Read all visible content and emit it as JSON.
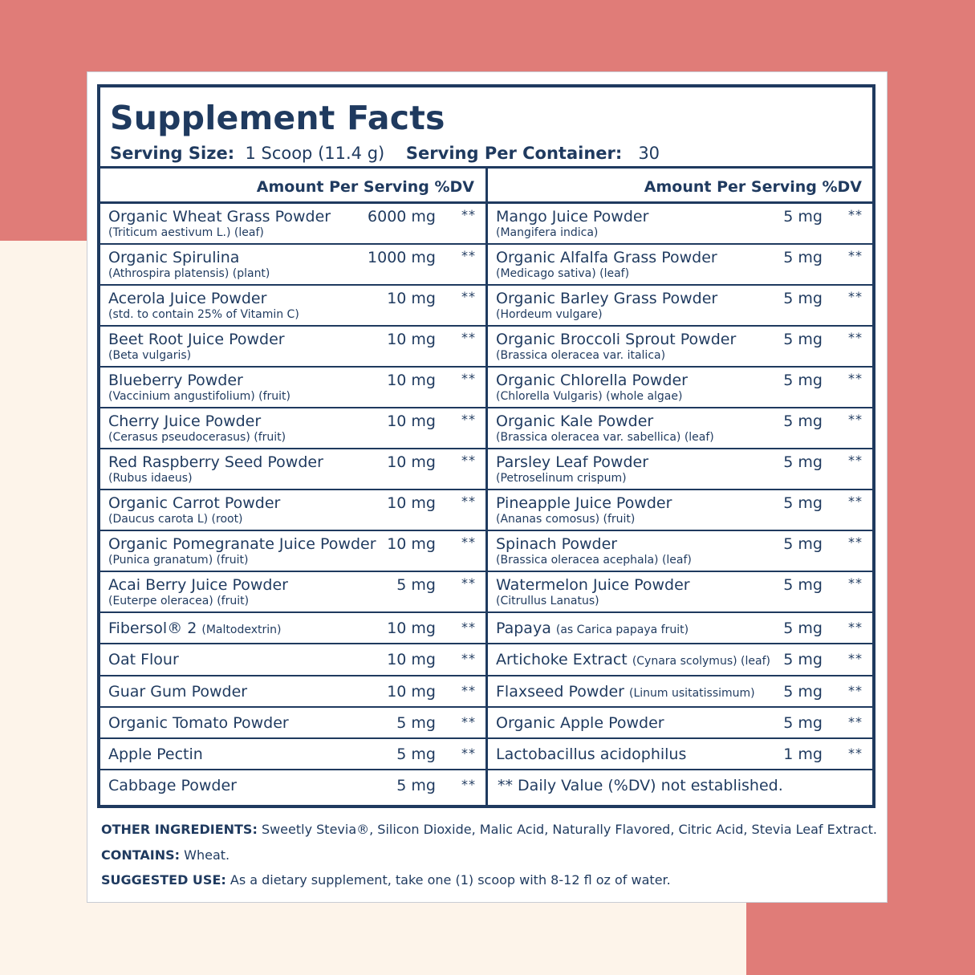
{
  "title": "Supplement Facts",
  "serving": {
    "size_label": "Serving Size:",
    "size_value": "1 Scoop (11.4 g)",
    "per_container_label": "Serving Per Container:",
    "per_container_value": "30"
  },
  "column_header": "Amount Per Serving %DV",
  "left_rows": [
    {
      "name": "Organic Wheat Grass Powder",
      "sci": "(Triticum aestivum L.) (leaf)",
      "amount": "6000 mg",
      "dv": "**"
    },
    {
      "name": "Organic Spirulina",
      "sci": "(Athrospira platensis) (plant)",
      "amount": "1000 mg",
      "dv": "**"
    },
    {
      "name": "Acerola Juice Powder",
      "sci": "(std. to contain 25% of Vitamin C)",
      "amount": "10 mg",
      "dv": "**"
    },
    {
      "name": "Beet Root Juice Powder",
      "sci": "(Beta vulgaris)",
      "amount": "10 mg",
      "dv": "**"
    },
    {
      "name": "Blueberry Powder",
      "sci": "(Vaccinium angustifolium) (fruit)",
      "amount": "10 mg",
      "dv": "**"
    },
    {
      "name": "Cherry Juice Powder",
      "sci": "(Cerasus pseudocerasus) (fruit)",
      "amount": "10 mg",
      "dv": "**"
    },
    {
      "name": "Red Raspberry Seed Powder",
      "sci": "(Rubus idaeus)",
      "amount": "10 mg",
      "dv": "**"
    },
    {
      "name": "Organic Carrot Powder",
      "sci": "(Daucus carota L) (root)",
      "amount": "10 mg",
      "dv": "**"
    },
    {
      "name": "Organic Pomegranate Juice Powder",
      "sci": "(Punica granatum) (fruit)",
      "amount": "10 mg",
      "dv": "**"
    },
    {
      "name": "Acai Berry Juice Powder",
      "sci": "(Euterpe oleracea) (fruit)",
      "amount": "5 mg",
      "dv": "**"
    },
    {
      "name": "Fibersol® 2",
      "paren": "(Maltodextrin)",
      "amount": "10 mg",
      "dv": "**"
    },
    {
      "name": "Oat Flour",
      "paren": "",
      "amount": "10 mg",
      "dv": "**"
    },
    {
      "name": "Guar Gum Powder",
      "paren": "",
      "amount": "10 mg",
      "dv": "**"
    },
    {
      "name": "Organic Tomato Powder",
      "paren": "",
      "amount": "5 mg",
      "dv": "**"
    },
    {
      "name": "Apple Pectin",
      "paren": "",
      "amount": "5 mg",
      "dv": "**"
    },
    {
      "name": "Cabbage Powder",
      "paren": "",
      "amount": "5 mg",
      "dv": "**"
    }
  ],
  "right_rows": [
    {
      "name": "Mango Juice Powder",
      "sci": "(Mangifera indica)",
      "amount": "5 mg",
      "dv": "**"
    },
    {
      "name": "Organic Alfalfa Grass Powder",
      "sci": "(Medicago sativa) (leaf)",
      "amount": "5 mg",
      "dv": "**"
    },
    {
      "name": "Organic Barley Grass Powder",
      "sci": "(Hordeum vulgare)",
      "amount": "5 mg",
      "dv": "**"
    },
    {
      "name": "Organic Broccoli Sprout Powder",
      "sci": "(Brassica oleracea var. italica)",
      "amount": "5 mg",
      "dv": "**"
    },
    {
      "name": "Organic Chlorella Powder",
      "sci": "(Chlorella Vulgaris) (whole algae)",
      "amount": "5 mg",
      "dv": "**"
    },
    {
      "name": "Organic Kale Powder",
      "sci": "(Brassica oleracea var. sabellica) (leaf)",
      "amount": "5 mg",
      "dv": "**"
    },
    {
      "name": "Parsley Leaf Powder",
      "sci": "(Petroselinum crispum)",
      "amount": "5 mg",
      "dv": "**"
    },
    {
      "name": "Pineapple Juice Powder",
      "sci": "(Ananas comosus) (fruit)",
      "amount": "5 mg",
      "dv": "**"
    },
    {
      "name": "Spinach Powder",
      "sci": "(Brassica oleracea acephala) (leaf)",
      "amount": "5 mg",
      "dv": "**"
    },
    {
      "name": "Watermelon Juice Powder",
      "sci": "(Citrullus Lanatus)",
      "amount": "5 mg",
      "dv": "**"
    },
    {
      "name": "Papaya",
      "paren": "(as Carica papaya fruit)",
      "amount": "5 mg",
      "dv": "**"
    },
    {
      "name": "Artichoke Extract",
      "paren": "(Cynara scolymus) (leaf)",
      "amount": "5 mg",
      "dv": "**"
    },
    {
      "name": "Flaxseed Powder",
      "paren": "(Linum usitatissimum)",
      "amount": "5 mg",
      "dv": "**"
    },
    {
      "name": "Organic Apple Powder",
      "paren": "",
      "amount": "5 mg",
      "dv": "**"
    },
    {
      "name": "Lactobacillus acidophilus",
      "paren": "",
      "amount": "1 mg",
      "dv": "**"
    }
  ],
  "dv_note": "** Daily Value (%DV) not established.",
  "footer": {
    "other_label": "OTHER INGREDIENTS:",
    "other_value": "Sweetly Stevia®, Silicon Dioxide, Malic Acid, Naturally Flavored, Citric Acid, Stevia Leaf Extract.",
    "contains_label": "CONTAINS:",
    "contains_value": "Wheat.",
    "use_label": "SUGGESTED USE:",
    "use_value": "As a dietary supplement, take one (1) scoop with  8-12 fl oz of water."
  },
  "colors": {
    "background": "#e07c78",
    "cream": "#fdf4ea",
    "ink": "#1f3a5f"
  }
}
